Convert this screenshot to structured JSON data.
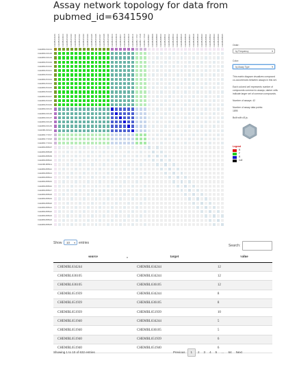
{
  "page": {
    "title": "Assay network topology for data from pubmed_id=6341590"
  },
  "matrix": {
    "labels": [
      "CHEMBL634244",
      "CHEMBL636105",
      "CHEMBL636103",
      "CHEMBL651939",
      "CHEMBL651940",
      "CHEMBL651941",
      "CHEMBL651942",
      "CHEMBL651943",
      "CHEMBL651944",
      "CHEMBL651945",
      "CHEMBL651946",
      "CHEMBL651947",
      "CHEMBL651948",
      "CHEMBL651949",
      "CHEMBL636104",
      "CHEMBL636106",
      "CHEMBL636107",
      "CHEMBL636108",
      "CHEMBL636109",
      "CHEMBL636110",
      "CHEMBL771517",
      "CHEMBL771518",
      "CHEMBL771519",
      "CHEMBL888907",
      "CHEMBL888908",
      "CHEMBL888909",
      "CHEMBL888910",
      "CHEMBL888911",
      "CHEMBL888912",
      "CHEMBL888913",
      "CHEMBL888914",
      "CHEMBL888915",
      "CHEMBL888916",
      "CHEMBL888917",
      "CHEMBL888918",
      "CHEMBL888919",
      "CHEMBL888920",
      "CHEMBL888921",
      "CHEMBL888922",
      "CHEMBL888923",
      "CHEMBL888924",
      "CHEMBL888925"
    ]
  },
  "panel": {
    "order_label": "Order:",
    "order_value": "by Frequency",
    "color_label": "Color:",
    "color_value": "by Assay Type",
    "desc1": "This matrix diagram visualizes compound co-occurrences between assays in this set.",
    "desc2": "Each colored cell represents number of compounds common to assays; darker cells indicate larger set of common compounds.",
    "num_assays": "Number of assays: 42",
    "num_points_label": "Number of assay data points:",
    "num_points": "1895",
    "built_with": "Built with d3.js.",
    "legend_title": "Legend",
    "legend": [
      {
        "label": "B",
        "color": "#e01010"
      },
      {
        "label": "F",
        "color": "#22cc22"
      },
      {
        "label": "B",
        "color": "#1010c8"
      },
      {
        "label": "null",
        "color": "#111111"
      }
    ]
  },
  "table_controls": {
    "show": "Show",
    "entries_value": "10",
    "entries": "entries",
    "search": "Search:"
  },
  "table": {
    "columns": [
      "source",
      "target",
      "value"
    ],
    "rows": [
      [
        "CHEMBL634244",
        "CHEMBL634244",
        "12"
      ],
      [
        "CHEMBL636105",
        "CHEMBL634244",
        "12"
      ],
      [
        "CHEMBL636105",
        "CHEMBL636105",
        "12"
      ],
      [
        "CHEMBL651939",
        "CHEMBL634244",
        "8"
      ],
      [
        "CHEMBL651939",
        "CHEMBL636105",
        "8"
      ],
      [
        "CHEMBL651939",
        "CHEMBL651939",
        "10"
      ],
      [
        "CHEMBL651940",
        "CHEMBL634244",
        "5"
      ],
      [
        "CHEMBL651940",
        "CHEMBL636105",
        "5"
      ],
      [
        "CHEMBL651940",
        "CHEMBL651939",
        "6"
      ],
      [
        "CHEMBL651940",
        "CHEMBL651940",
        "6"
      ]
    ]
  },
  "footer": {
    "info": "Showing 1 to 10 of 632 entries",
    "previous": "Previous",
    "pages": [
      "1",
      "2",
      "3",
      "4",
      "5"
    ],
    "ellipsis": "…",
    "last": "64",
    "next": "Next"
  }
}
